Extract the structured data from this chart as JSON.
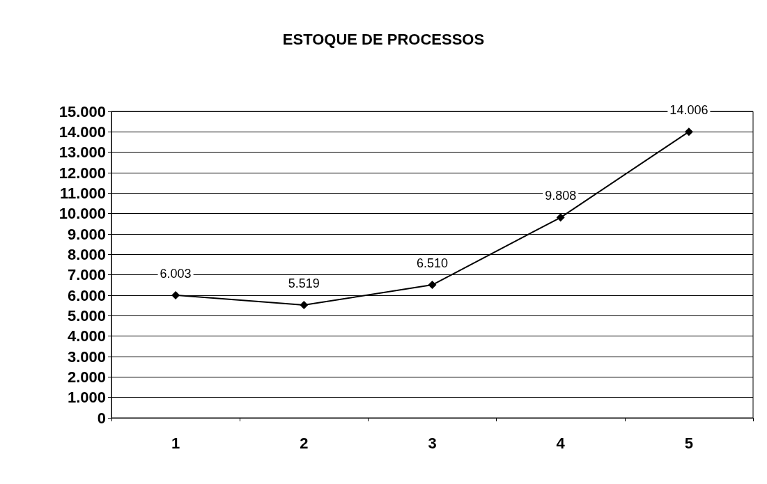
{
  "chart_data": {
    "type": "line",
    "title": "ESTOQUE DE PROCESSOS",
    "categories": [
      "1",
      "2",
      "3",
      "4",
      "5"
    ],
    "series": [
      {
        "color": "#000000",
        "values": [
          6003,
          5519,
          6510,
          9808,
          14006
        ],
        "value_labels": [
          "6.003",
          "5.519",
          "6.510",
          "9.808",
          "14.006"
        ]
      }
    ],
    "ylim": [
      0,
      15000
    ],
    "yticks": [
      0,
      {
        "value": 1000,
        "label": "1.000"
      },
      {
        "value": 2000,
        "label": "2.000"
      },
      {
        "value": 3000,
        "label": "3.000"
      },
      {
        "value": 4000,
        "label": "4.000"
      },
      {
        "value": 5000,
        "label": "5.000"
      },
      {
        "value": 6000,
        "label": "6.000"
      },
      {
        "value": 7000,
        "label": "7.000"
      },
      {
        "value": 8000,
        "label": "8.000"
      },
      {
        "value": 9000,
        "label": "9.000"
      },
      {
        "value": 10000,
        "label": "10.000"
      },
      {
        "value": 11000,
        "label": "11.000"
      },
      {
        "value": 12000,
        "label": "12.000"
      },
      {
        "value": 13000,
        "label": "13.000"
      },
      {
        "value": 14000,
        "label": "14.000"
      },
      {
        "value": 15000,
        "label": "15.000"
      }
    ],
    "grid": "y",
    "marker": "diamond",
    "line_style": "solid"
  }
}
